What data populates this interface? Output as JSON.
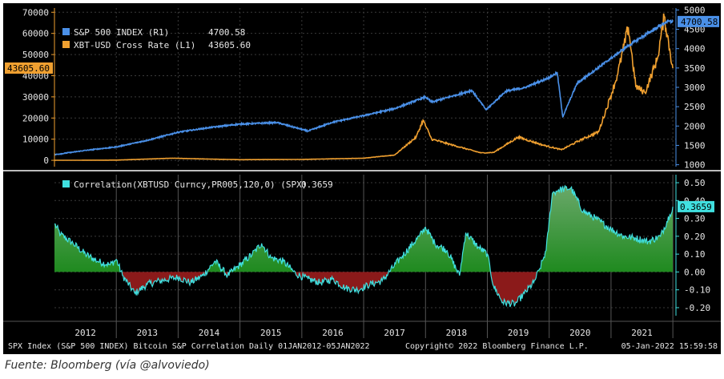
{
  "caption": "Fuente: Bloomberg (vía @alvoviedo)",
  "footer": {
    "left": "SPX Index (S&P 500 INDEX) Bitcoin S&P Correlation  Daily 01JAN2012-05JAN2022",
    "center": "Copyright© 2022 Bloomberg Finance L.P.",
    "right": "05-Jan-2022 15:59:58"
  },
  "colors": {
    "spx": "#4a90e8",
    "btc": "#f0a030",
    "corr": "#40e0e0",
    "pos_fill": "#1f8a1f",
    "neg_fill": "#8b1a1a"
  },
  "chart_data": [
    {
      "type": "line",
      "legend_placement": "top-left",
      "grid": true,
      "left_axis": {
        "range": [
          -3000,
          72000
        ],
        "ticks": [
          0,
          10000,
          20000,
          30000,
          40000,
          50000,
          60000,
          70000
        ],
        "tick_labels": [
          "0",
          "10000",
          "20000",
          "30000",
          "40000",
          "50000",
          "60000",
          "70000"
        ]
      },
      "right_axis": {
        "range": [
          950,
          5050
        ],
        "ticks": [
          1000,
          1500,
          2000,
          2500,
          3000,
          3500,
          4000,
          4500,
          5000
        ],
        "tick_labels": [
          "1000",
          "1500",
          "2000",
          "2500",
          "3000",
          "3500",
          "4000",
          "4500",
          "5000"
        ]
      },
      "x_range": [
        2012.0,
        2022.05
      ],
      "series": [
        {
          "name": "S&P 500 INDEX (R1)",
          "axis": "right",
          "color": "#4a90e8",
          "last_value_label": "4700.58",
          "x": [
            2012.0,
            2012.5,
            2013.0,
            2013.5,
            2014.0,
            2014.5,
            2015.0,
            2015.6,
            2016.1,
            2016.5,
            2017.0,
            2017.5,
            2018.0,
            2018.1,
            2018.6,
            2018.75,
            2018.98,
            2019.3,
            2019.6,
            2020.0,
            2020.13,
            2020.22,
            2020.45,
            2020.7,
            2021.0,
            2021.3,
            2021.6,
            2021.9,
            2022.0
          ],
          "values": [
            1260,
            1370,
            1460,
            1630,
            1840,
            1960,
            2050,
            2090,
            1870,
            2100,
            2270,
            2450,
            2750,
            2620,
            2850,
            2920,
            2420,
            2900,
            2990,
            3250,
            3380,
            2240,
            3100,
            3400,
            3750,
            4100,
            4400,
            4700,
            4700.58
          ]
        },
        {
          "name": "XBT-USD Cross Rate  (L1)",
          "axis": "left",
          "color": "#f0a030",
          "last_value_label": "43605.60",
          "x": [
            2012.0,
            2013.0,
            2013.9,
            2014.5,
            2015.0,
            2016.0,
            2017.0,
            2017.5,
            2017.85,
            2017.96,
            2018.1,
            2018.4,
            2018.9,
            2019.1,
            2019.5,
            2019.9,
            2020.2,
            2020.5,
            2020.8,
            2020.98,
            2021.1,
            2021.28,
            2021.4,
            2021.55,
            2021.75,
            2021.86,
            2022.0
          ],
          "values": [
            10,
            100,
            1000,
            600,
            300,
            430,
            1000,
            2500,
            11000,
            19000,
            10000,
            7500,
            3500,
            3700,
            11000,
            7200,
            5000,
            9500,
            13500,
            29000,
            40000,
            63000,
            35000,
            32000,
            48000,
            68000,
            43605.6
          ]
        }
      ]
    },
    {
      "type": "area",
      "legend_placement": "top-left",
      "grid": true,
      "y_axis": {
        "range": [
          -0.245,
          0.545
        ],
        "ticks": [
          -0.2,
          -0.1,
          0.0,
          0.1,
          0.2,
          0.3,
          0.4,
          0.5
        ],
        "tick_labels": [
          "-0.20",
          "-0.10",
          "0.00",
          "0.10",
          "0.20",
          "0.30",
          "0.40",
          "0.50"
        ]
      },
      "x_range": [
        2012.0,
        2022.05
      ],
      "categories": [
        "2012",
        "2013",
        "2014",
        "2015",
        "2016",
        "2017",
        "2018",
        "2019",
        "2020",
        "2021"
      ],
      "series": [
        {
          "name": "Correlation(XBTUSD Curncy,PR005,120,0) (SPX)",
          "color": "#40e0e0",
          "last_value_label": "0.3659",
          "legend_value": "0.3659",
          "x": [
            2012.0,
            2012.1,
            2012.3,
            2012.5,
            2012.7,
            2012.9,
            2013.0,
            2013.1,
            2013.3,
            2013.5,
            2013.7,
            2014.0,
            2014.2,
            2014.4,
            2014.6,
            2014.8,
            2015.0,
            2015.2,
            2015.35,
            2015.5,
            2015.7,
            2015.9,
            2016.1,
            2016.3,
            2016.5,
            2016.7,
            2016.9,
            2017.1,
            2017.3,
            2017.6,
            2017.9,
            2018.0,
            2018.15,
            2018.35,
            2018.55,
            2018.65,
            2018.85,
            2019.0,
            2019.1,
            2019.25,
            2019.45,
            2019.6,
            2019.75,
            2019.85,
            2019.95,
            2020.05,
            2020.15,
            2020.35,
            2020.55,
            2020.75,
            2021.0,
            2021.2,
            2021.4,
            2021.6,
            2021.8,
            2021.95,
            2022.0
          ],
          "values": [
            0.27,
            0.21,
            0.16,
            0.1,
            0.06,
            0.04,
            0.07,
            -0.02,
            -0.12,
            -0.07,
            -0.05,
            -0.03,
            -0.06,
            -0.02,
            0.06,
            -0.02,
            0.04,
            0.1,
            0.16,
            0.08,
            0.06,
            -0.01,
            -0.04,
            -0.06,
            -0.04,
            -0.09,
            -0.1,
            -0.07,
            -0.05,
            0.08,
            0.2,
            0.25,
            0.16,
            0.12,
            -0.02,
            0.22,
            0.14,
            0.1,
            -0.08,
            -0.17,
            -0.18,
            -0.12,
            -0.06,
            0.02,
            0.12,
            0.44,
            0.46,
            0.47,
            0.34,
            0.3,
            0.24,
            0.2,
            0.19,
            0.17,
            0.2,
            0.32,
            0.3659
          ]
        }
      ]
    }
  ]
}
